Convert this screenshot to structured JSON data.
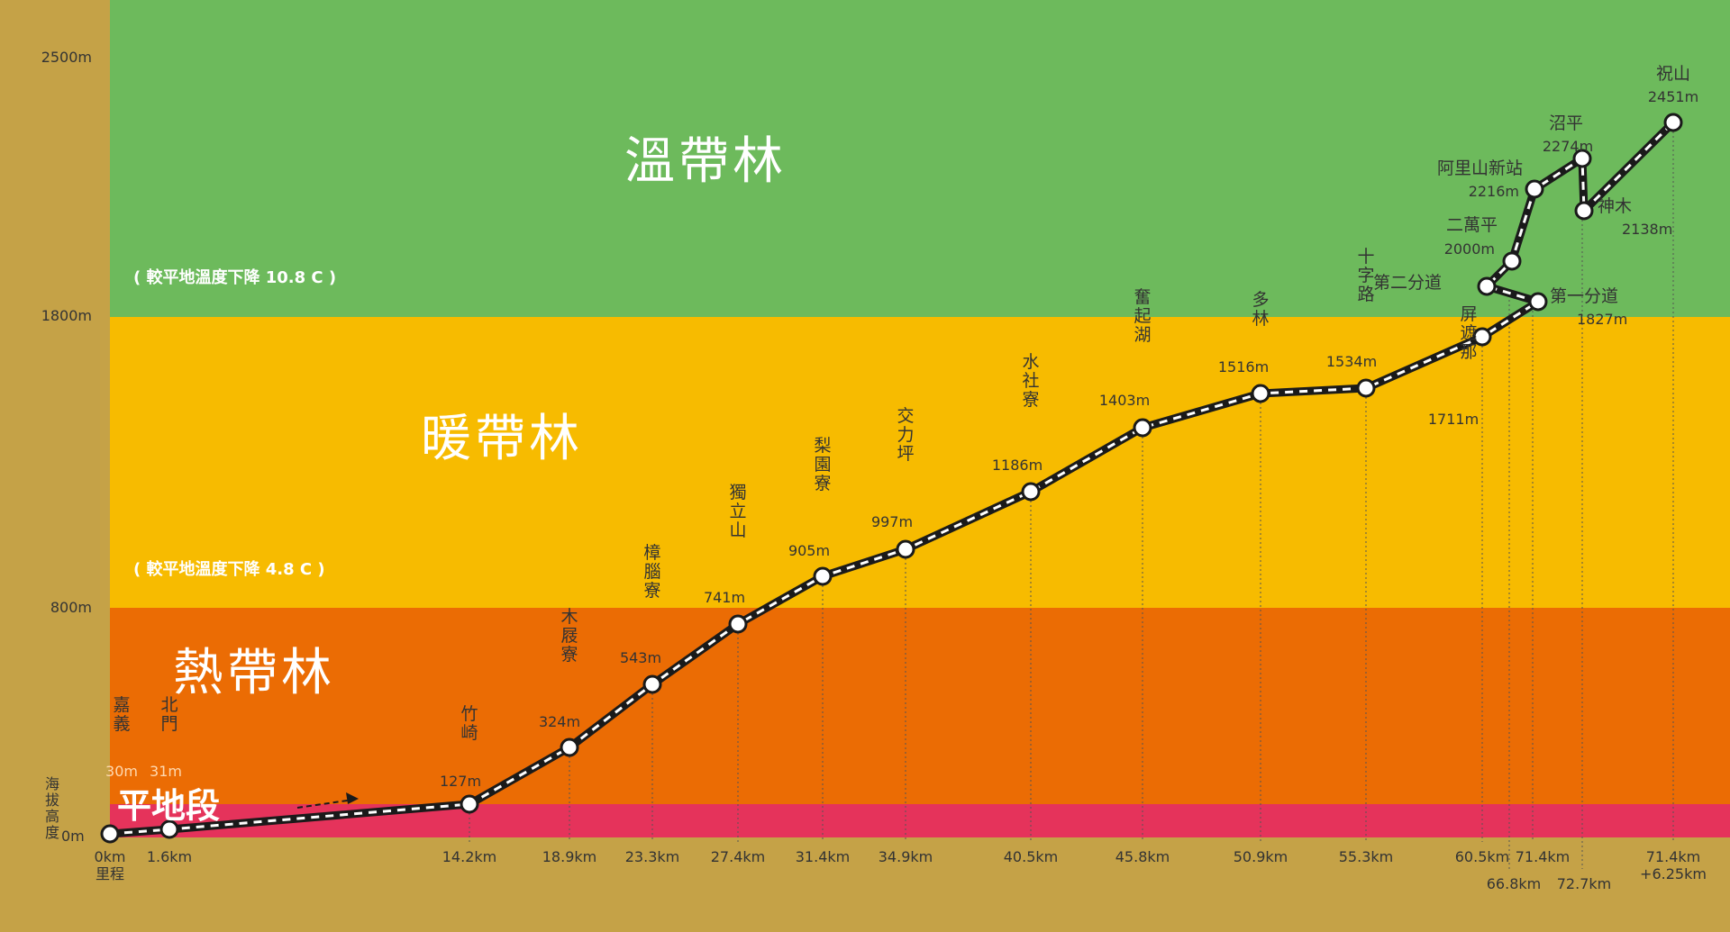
{
  "colors": {
    "background": "#c5a247",
    "temperate": "#6dba5c",
    "warm": "#f7bb00",
    "tropical": "#eb6c04",
    "lowland": "#e5335b",
    "track_outer": "#1a1a1a",
    "track_inner": "#ffffff"
  },
  "zones": [
    {
      "key": "temperate",
      "name": "溫帶林",
      "note": "( 較平地溫度下降 10.8 C )",
      "from": 1800,
      "to": 2500
    },
    {
      "key": "warm",
      "name": "暖帶林",
      "note": "( 較平地溫度下降 4.8 C )",
      "from": 800,
      "to": 1800
    },
    {
      "key": "tropical",
      "name": "熱帶林",
      "note": "",
      "from": 100,
      "to": 800
    },
    {
      "key": "lowland",
      "name": "平地段",
      "note": "",
      "from": 0,
      "to": 100
    }
  ],
  "y_axis_labels": [
    {
      "value": 2500,
      "text": "2500m"
    },
    {
      "value": 1800,
      "text": "1800m"
    },
    {
      "value": 800,
      "text": "800m"
    }
  ],
  "y_axis_title": "海拔高度",
  "y_axis_zero": "0m",
  "x_axis_title": "里程",
  "chart_data": {
    "type": "line",
    "xlabel": "里程",
    "ylabel": "海拔高度",
    "ylim": [
      0,
      2500
    ],
    "stations": [
      {
        "name": "嘉義",
        "elevation_label": "30m",
        "km_label": "0km",
        "y": 30
      },
      {
        "name": "北門",
        "elevation_label": "31m",
        "km_label": "1.6km",
        "y": 31
      },
      {
        "name": "竹崎",
        "elevation_label": "127m",
        "km_label": "14.2km",
        "y": 127
      },
      {
        "name": "木屐寮",
        "elevation_label": "324m",
        "km_label": "18.9km",
        "y": 324
      },
      {
        "name": "樟腦寮",
        "elevation_label": "543m",
        "km_label": "23.3km",
        "y": 543
      },
      {
        "name": "獨立山",
        "elevation_label": "741m",
        "km_label": "27.4km",
        "y": 741
      },
      {
        "name": "梨園寮",
        "elevation_label": "905m",
        "km_label": "31.4km",
        "y": 905
      },
      {
        "name": "交力坪",
        "elevation_label": "997m",
        "km_label": "34.9km",
        "y": 997
      },
      {
        "name": "水社寮",
        "elevation_label": "1186m",
        "km_label": "40.5km",
        "y": 1186
      },
      {
        "name": "奮起湖",
        "elevation_label": "1403m",
        "km_label": "45.8km",
        "y": 1403
      },
      {
        "name": "多林",
        "elevation_label": "1516m",
        "km_label": "50.9km",
        "y": 1516
      },
      {
        "name": "十字路",
        "elevation_label": "1534m",
        "km_label": "55.3km",
        "y": 1534
      },
      {
        "name": "屏遮那",
        "elevation_label": "1711m",
        "km_label": "60.5km",
        "y": 1711
      },
      {
        "name": "第二分道",
        "elevation_label": "",
        "km_label": "66.8km",
        "y": 1800
      },
      {
        "name": "第一分道",
        "elevation_label": "1827m",
        "km_label": "71.4km",
        "y": 1827
      },
      {
        "name": "二萬平",
        "elevation_label": "2000m",
        "km_label": "",
        "y": 2000
      },
      {
        "name": "阿里山新站",
        "elevation_label": "2216m",
        "km_label": "",
        "y": 2216
      },
      {
        "name": "沼平",
        "elevation_label": "2274m",
        "km_label": "",
        "y": 2274
      },
      {
        "name": "神木",
        "elevation_label": "2138m",
        "km_label": "72.7km",
        "y": 2138
      },
      {
        "name": "祝山",
        "elevation_label": "2451m",
        "km_label": "71.4km +6.25km",
        "y": 2451
      }
    ]
  }
}
